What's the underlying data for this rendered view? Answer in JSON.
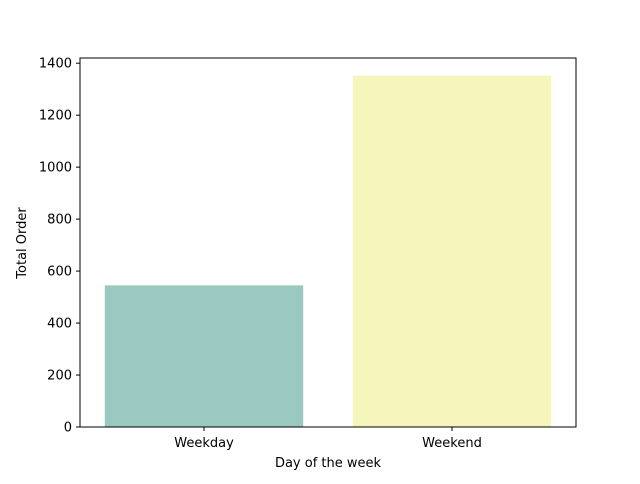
{
  "chart_data": {
    "type": "bar",
    "title": "",
    "xlabel": "Day of the week",
    "ylabel": "Total Order",
    "categories": [
      "Weekday",
      "Weekend"
    ],
    "values": [
      545,
      1352
    ],
    "ylim": [
      0,
      1420
    ],
    "yticks": [
      0,
      200,
      400,
      600,
      800,
      1000,
      1200,
      1400
    ],
    "grid": false,
    "legend": "none",
    "colors": [
      "#99c9c0",
      "#f5f5bc"
    ]
  }
}
